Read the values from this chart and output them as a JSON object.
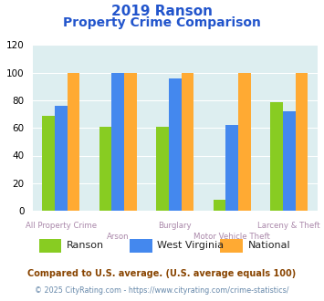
{
  "title_line1": "2019 Ranson",
  "title_line2": "Property Crime Comparison",
  "categories": [
    "All Property Crime",
    "Arson",
    "Burglary",
    "Motor Vehicle Theft",
    "Larceny & Theft"
  ],
  "ranson": [
    69,
    61,
    61,
    8,
    79
  ],
  "west_virginia": [
    76,
    100,
    96,
    62,
    72
  ],
  "national": [
    100,
    100,
    100,
    100,
    100
  ],
  "color_ranson": "#88cc22",
  "color_west_virginia": "#4488ee",
  "color_national": "#ffaa33",
  "ylim": [
    0,
    120
  ],
  "yticks": [
    0,
    20,
    40,
    60,
    80,
    100,
    120
  ],
  "background_color": "#ddeef0",
  "legend_labels": [
    "Ranson",
    "West Virginia",
    "National"
  ],
  "footnote1": "Compared to U.S. average. (U.S. average equals 100)",
  "footnote2": "© 2025 CityRating.com - https://www.cityrating.com/crime-statistics/",
  "title_color": "#2255cc",
  "xticklabel_color_top": "#aa88aa",
  "xticklabel_color_bot": "#aa88aa",
  "footnote1_color": "#884400",
  "footnote2_color": "#6688aa"
}
